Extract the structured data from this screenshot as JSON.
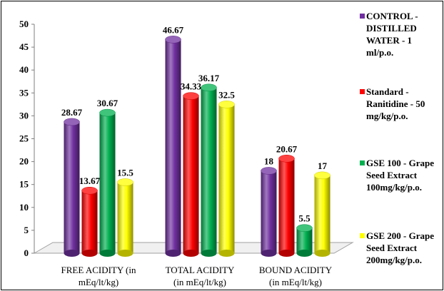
{
  "chart_data": {
    "type": "bar",
    "categories": [
      "FREE ACIDITY (in\nmEq/lt/kg)",
      "TOTAL ACIDITY\n(in mEq/lt/kg)",
      "BOUND ACIDITY\n(in mEq/lt/kg)"
    ],
    "series": [
      {
        "name": "CONTROL -\nDISTILLED\nWATER - 1\nml/p.o.",
        "color": "#7030a0",
        "values": [
          28.67,
          46.67,
          18
        ],
        "labels": [
          "28.67",
          "46.67",
          "18"
        ]
      },
      {
        "name": "Standard -\nRanitidine - 50\nmg/kg/p.o.",
        "color": "#ff0000",
        "values": [
          13.67,
          34.33,
          20.67
        ],
        "labels": [
          "13.67",
          "34.33",
          "20.67"
        ]
      },
      {
        "name": "GSE 100 - Grape\nSeed Extract\n100mg/kg/p.o.",
        "color": "#00b050",
        "values": [
          30.67,
          36.17,
          5.5
        ],
        "labels": [
          "30.67",
          "36.17",
          "5.5"
        ]
      },
      {
        "name": "GSE 200 - Grape\nSeed Extract\n200mg/kg/p.o.",
        "color": "#ffff00",
        "values": [
          15.5,
          32.5,
          17
        ],
        "labels": [
          "15.5",
          "32.5",
          "17"
        ]
      }
    ],
    "yticks": [
      "0",
      "5",
      "10",
      "15",
      "20",
      "25",
      "30",
      "35",
      "40",
      "45",
      "50"
    ],
    "ylim": [
      0,
      50
    ],
    "grid": false,
    "legend_position": "right",
    "style": "3d-cylinder"
  }
}
